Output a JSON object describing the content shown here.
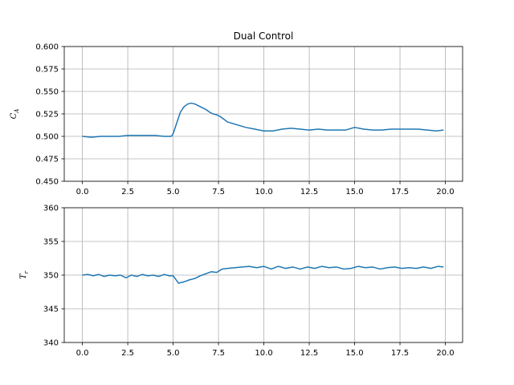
{
  "chart_data": [
    {
      "type": "line",
      "title": "Dual Control",
      "xlabel": "",
      "ylabel_main": "C",
      "ylabel_sub": "A",
      "xlim": [
        -1.0,
        20.95
      ],
      "ylim": [
        0.45,
        0.6
      ],
      "xticks": [
        0.0,
        2.5,
        5.0,
        7.5,
        10.0,
        12.5,
        15.0,
        17.5,
        20.0
      ],
      "xtick_labels": [
        "0.0",
        "2.5",
        "5.0",
        "7.5",
        "10.0",
        "12.5",
        "15.0",
        "17.5",
        "20.0"
      ],
      "yticks": [
        0.45,
        0.475,
        0.5,
        0.525,
        0.55,
        0.575,
        0.6
      ],
      "ytick_labels": [
        "0.450",
        "0.475",
        "0.500",
        "0.525",
        "0.550",
        "0.575",
        "0.600"
      ],
      "grid": true,
      "series": [
        {
          "color": "#1f77b4",
          "x": [
            0.0,
            0.5,
            1.0,
            1.5,
            2.0,
            2.5,
            3.0,
            3.5,
            4.0,
            4.5,
            4.9,
            5.0,
            5.2,
            5.4,
            5.6,
            5.8,
            6.0,
            6.2,
            6.4,
            6.6,
            6.8,
            7.0,
            7.2,
            7.4,
            7.6,
            7.8,
            8.0,
            8.5,
            9.0,
            9.5,
            10.0,
            10.5,
            11.0,
            11.5,
            12.0,
            12.5,
            13.0,
            13.5,
            14.0,
            14.5,
            15.0,
            15.5,
            16.0,
            16.5,
            17.0,
            17.5,
            18.0,
            18.5,
            19.0,
            19.5,
            19.9
          ],
          "y": [
            0.5,
            0.499,
            0.5,
            0.5,
            0.5,
            0.501,
            0.501,
            0.501,
            0.501,
            0.5,
            0.5,
            0.503,
            0.515,
            0.527,
            0.533,
            0.536,
            0.537,
            0.536,
            0.534,
            0.532,
            0.53,
            0.527,
            0.525,
            0.524,
            0.522,
            0.519,
            0.516,
            0.513,
            0.51,
            0.508,
            0.506,
            0.506,
            0.508,
            0.509,
            0.508,
            0.507,
            0.508,
            0.507,
            0.507,
            0.507,
            0.51,
            0.508,
            0.507,
            0.507,
            0.508,
            0.508,
            0.508,
            0.508,
            0.507,
            0.506,
            0.507
          ]
        }
      ]
    },
    {
      "type": "line",
      "title": "",
      "xlabel": "",
      "ylabel_main": "T",
      "ylabel_sub": "r",
      "xlim": [
        -1.0,
        20.95
      ],
      "ylim": [
        340,
        360
      ],
      "xticks": [
        0.0,
        2.5,
        5.0,
        7.5,
        10.0,
        12.5,
        15.0,
        17.5,
        20.0
      ],
      "xtick_labels": [
        "0.0",
        "2.5",
        "5.0",
        "7.5",
        "10.0",
        "12.5",
        "15.0",
        "17.5",
        "20.0"
      ],
      "yticks": [
        340,
        345,
        350,
        355,
        360
      ],
      "ytick_labels": [
        "340",
        "345",
        "350",
        "355",
        "360"
      ],
      "grid": true,
      "series": [
        {
          "color": "#1f77b4",
          "x": [
            0.0,
            0.3,
            0.6,
            0.9,
            1.2,
            1.5,
            1.8,
            2.1,
            2.4,
            2.7,
            3.0,
            3.3,
            3.6,
            3.9,
            4.2,
            4.5,
            4.8,
            5.0,
            5.3,
            5.6,
            5.9,
            6.2,
            6.5,
            6.8,
            7.1,
            7.4,
            7.7,
            8.0,
            8.4,
            8.8,
            9.2,
            9.6,
            10.0,
            10.4,
            10.8,
            11.2,
            11.6,
            12.0,
            12.4,
            12.8,
            13.2,
            13.6,
            14.0,
            14.4,
            14.8,
            15.2,
            15.6,
            16.0,
            16.4,
            16.8,
            17.2,
            17.6,
            18.0,
            18.4,
            18.8,
            19.2,
            19.6,
            19.9
          ],
          "y": [
            350.0,
            350.1,
            349.9,
            350.1,
            349.8,
            350.0,
            349.9,
            350.0,
            349.6,
            350.0,
            349.8,
            350.1,
            349.9,
            350.0,
            349.8,
            350.1,
            349.9,
            349.9,
            348.8,
            349.0,
            349.3,
            349.5,
            349.9,
            350.2,
            350.5,
            350.4,
            350.9,
            351.0,
            351.1,
            351.2,
            351.3,
            351.1,
            351.3,
            350.9,
            351.3,
            351.0,
            351.2,
            350.9,
            351.2,
            351.0,
            351.3,
            351.1,
            351.2,
            350.9,
            351.0,
            351.3,
            351.1,
            351.2,
            350.9,
            351.1,
            351.2,
            351.0,
            351.1,
            351.0,
            351.2,
            351.0,
            351.3,
            351.2
          ]
        }
      ]
    }
  ]
}
